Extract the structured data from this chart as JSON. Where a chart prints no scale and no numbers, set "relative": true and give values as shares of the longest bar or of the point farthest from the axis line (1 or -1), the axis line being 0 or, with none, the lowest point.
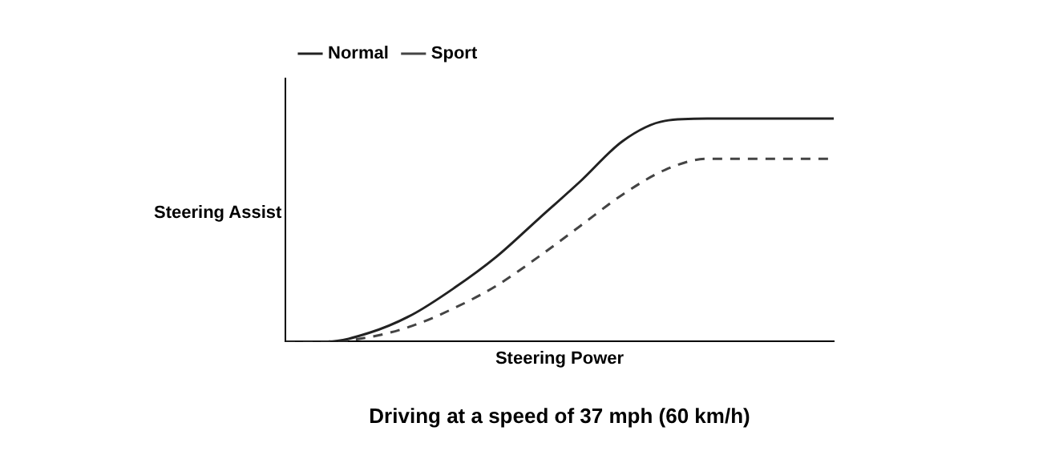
{
  "chart_data": {
    "type": "line",
    "title": "Driving at a speed of 37 mph (60 km/h)",
    "xlabel": "Steering Power",
    "ylabel": "Steering Assist",
    "relative": true,
    "tick_labels": false,
    "grid": false,
    "legend": "top left",
    "marker": "none",
    "categories": [
      null,
      null,
      null,
      null,
      null,
      null,
      null,
      null,
      null,
      null,
      null,
      null,
      null,
      null
    ],
    "series": [
      {
        "name": "Normal",
        "color": "#222222",
        "line_style": "solid",
        "values": [
          0,
          0,
          0.04,
          0.12,
          0.24,
          0.38,
          0.55,
          0.72,
          0.9,
          0.99,
          1,
          1,
          1,
          1
        ]
      },
      {
        "name": "Sport",
        "color": "#444444",
        "line_style": "dashed",
        "values": [
          0,
          0,
          0.02,
          0.07,
          0.15,
          0.25,
          0.38,
          0.52,
          0.66,
          0.77,
          0.82,
          0.82,
          0.82,
          0.82
        ]
      }
    ]
  }
}
